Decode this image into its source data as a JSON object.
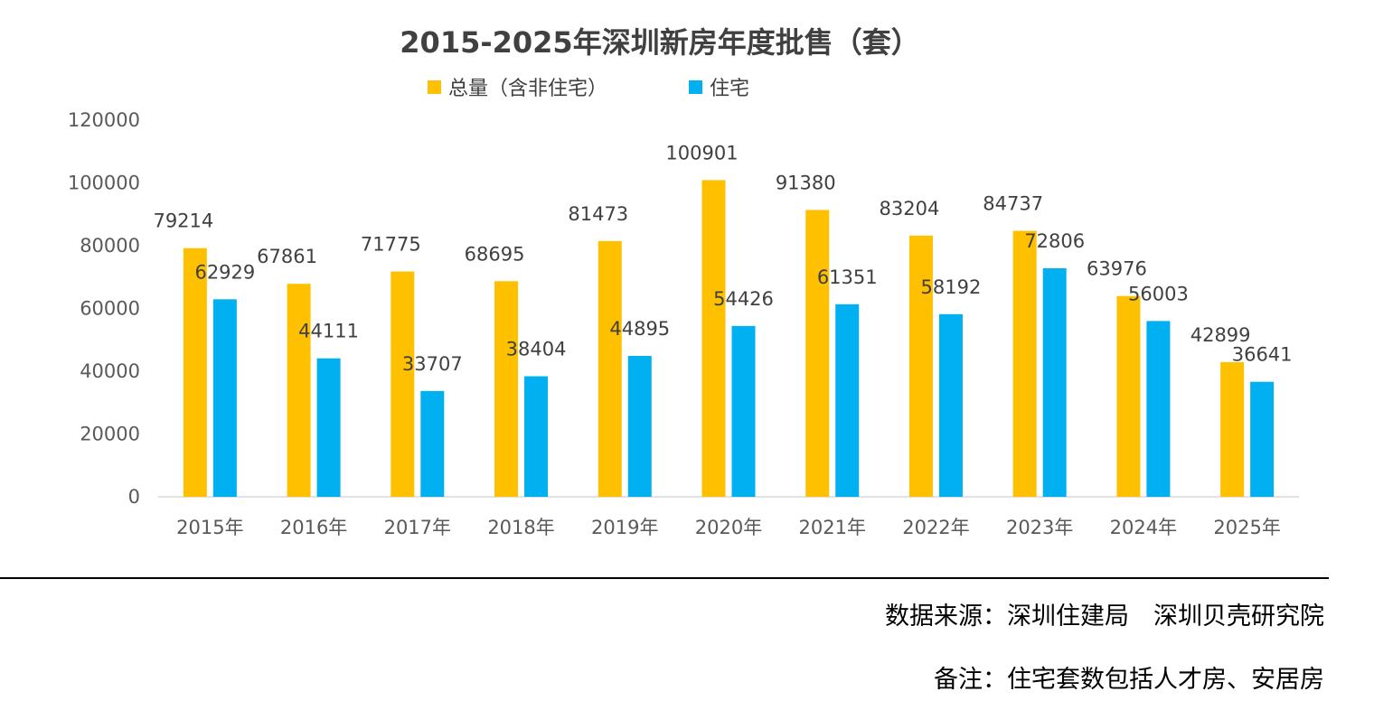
{
  "colors": {
    "total": "#FFC000",
    "residential": "#00B0F0",
    "axis": "#D9D9D9",
    "text": "#404040"
  },
  "footer": {
    "source": "数据来源：深圳住建局　深圳贝壳研究院",
    "note": "备注：住宅套数包括人才房、安居房"
  },
  "chart_data": {
    "type": "bar",
    "title": "2015-2025年深圳新房年度批售（套）",
    "categories": [
      "2015年",
      "2016年",
      "2017年",
      "2018年",
      "2019年",
      "2020年",
      "2021年",
      "2022年",
      "2023年",
      "2024年",
      "2025年"
    ],
    "series": [
      {
        "name": "总量（含非住宅）",
        "color": "#FFC000",
        "values": [
          79214,
          67861,
          71775,
          68695,
          81473,
          100901,
          91380,
          83204,
          84737,
          63976,
          42899
        ]
      },
      {
        "name": "住宅",
        "color": "#00B0F0",
        "values": [
          62929,
          44111,
          33707,
          38404,
          44895,
          54426,
          61351,
          58192,
          72806,
          56003,
          36641
        ]
      }
    ],
    "ylim": [
      0,
      120000
    ],
    "yticks": [
      0,
      20000,
      40000,
      60000,
      80000,
      100000,
      120000
    ],
    "xlabel": "",
    "ylabel": "",
    "legend_position": "top-center",
    "grid": false
  }
}
